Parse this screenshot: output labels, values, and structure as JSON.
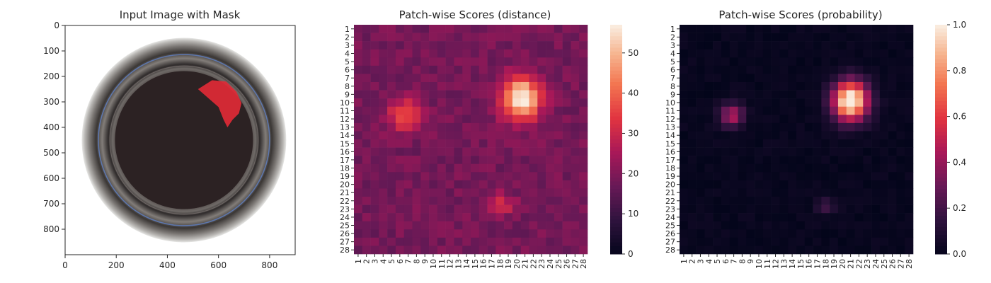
{
  "chart_data": [
    {
      "type": "image",
      "title": "Input Image with Mask",
      "xlim": [
        0,
        900
      ],
      "ylim": [
        900,
        0
      ],
      "xticks": [
        "0",
        "200",
        "400",
        "600",
        "800"
      ],
      "yticks": [
        "0",
        "100",
        "200",
        "300",
        "400",
        "500",
        "600",
        "700",
        "800"
      ],
      "colors": {
        "rim": "#3a3432",
        "interior": "#2c2223",
        "blue_ring": "#5f7fc3",
        "mask": "#e02a36"
      }
    },
    {
      "type": "heatmap",
      "title": "Patch-wise Scores (distance)",
      "rows": 28,
      "cols": 28,
      "row_labels": [
        "1",
        "2",
        "3",
        "4",
        "5",
        "6",
        "7",
        "8",
        "9",
        "10",
        "11",
        "12",
        "13",
        "14",
        "15",
        "16",
        "17",
        "18",
        "19",
        "20",
        "21",
        "22",
        "23",
        "24",
        "25",
        "26",
        "27",
        "28"
      ],
      "col_labels": [
        "1",
        "2",
        "3",
        "4",
        "5",
        "6",
        "7",
        "8",
        "9",
        "10",
        "11",
        "12",
        "13",
        "14",
        "15",
        "16",
        "17",
        "18",
        "19",
        "20",
        "21",
        "22",
        "23",
        "24",
        "25",
        "26",
        "27",
        "28"
      ],
      "colorbar_range": [
        0,
        57
      ],
      "colorbar_ticks": [
        "0",
        "10",
        "20",
        "30",
        "40",
        "50"
      ],
      "colormap": "rocket",
      "hot_regions": [
        {
          "rows": [
            6,
            14
          ],
          "cols": [
            17,
            24
          ],
          "peak": 57
        },
        {
          "rows": [
            9,
            14
          ],
          "cols": [
            4,
            9
          ],
          "peak": 40
        },
        {
          "rows": [
            21,
            24
          ],
          "cols": [
            16,
            20
          ],
          "peak": 35
        }
      ]
    },
    {
      "type": "heatmap",
      "title": "Patch-wise Scores (probability)",
      "rows": 28,
      "cols": 28,
      "row_labels": [
        "1",
        "2",
        "3",
        "4",
        "5",
        "6",
        "7",
        "8",
        "9",
        "10",
        "11",
        "12",
        "13",
        "14",
        "15",
        "16",
        "17",
        "18",
        "19",
        "20",
        "21",
        "22",
        "23",
        "24",
        "25",
        "26",
        "27",
        "28"
      ],
      "col_labels": [
        "1",
        "2",
        "3",
        "4",
        "5",
        "6",
        "7",
        "8",
        "9",
        "10",
        "11",
        "12",
        "13",
        "14",
        "15",
        "16",
        "17",
        "18",
        "19",
        "20",
        "21",
        "22",
        "23",
        "24",
        "25",
        "26",
        "27",
        "28"
      ],
      "colorbar_range": [
        0,
        1
      ],
      "colorbar_ticks": [
        "0.0",
        "0.2",
        "0.4",
        "0.6",
        "0.8",
        "1.0"
      ],
      "colormap": "rocket",
      "hot_regions": [
        {
          "rows": [
            6,
            14
          ],
          "cols": [
            17,
            24
          ],
          "peak": 1.0
        },
        {
          "rows": [
            10,
            13
          ],
          "cols": [
            5,
            8
          ],
          "peak": 0.45
        },
        {
          "rows": [
            22,
            23
          ],
          "cols": [
            17,
            19
          ],
          "peak": 0.15
        }
      ]
    }
  ]
}
